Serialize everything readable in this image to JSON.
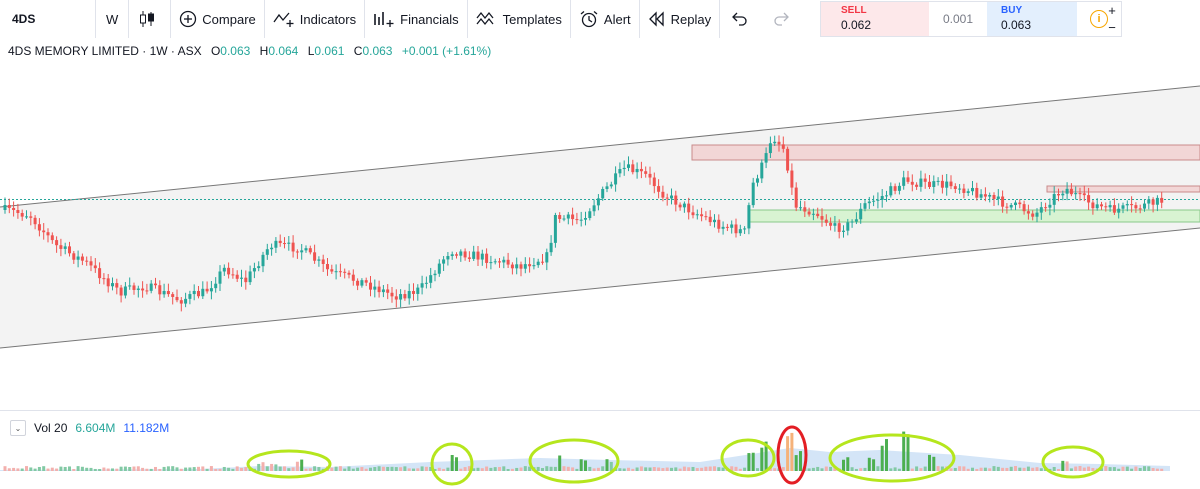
{
  "toolbar": {
    "symbol": "4DS",
    "interval": "W",
    "compare": "Compare",
    "indicators": "Indicators",
    "financials": "Financials",
    "templates": "Templates",
    "alert": "Alert",
    "replay": "Replay"
  },
  "trade": {
    "sell_label": "SELL",
    "sell_value": "0.062",
    "spread": "0.001",
    "buy_label": "BUY",
    "buy_value": "0.063",
    "info": "i",
    "plus": "+",
    "minus": "−"
  },
  "legend": {
    "title": "4DS MEMORY LIMITED · 1W · ASX",
    "o_label": "O",
    "o_value": "0.063",
    "h_label": "H",
    "h_value": "0.064",
    "l_label": "L",
    "l_value": "0.061",
    "c_label": "C",
    "c_value": "0.063",
    "change": "+0.001 (+1.61%)"
  },
  "volume": {
    "label": "Vol 20",
    "value1": "6.604M",
    "value2": "11.182M"
  },
  "colors": {
    "up": "#26a69a",
    "down": "#ef5350",
    "highlight": "#b5e61d",
    "alert_circle": "#e31e24"
  }
}
